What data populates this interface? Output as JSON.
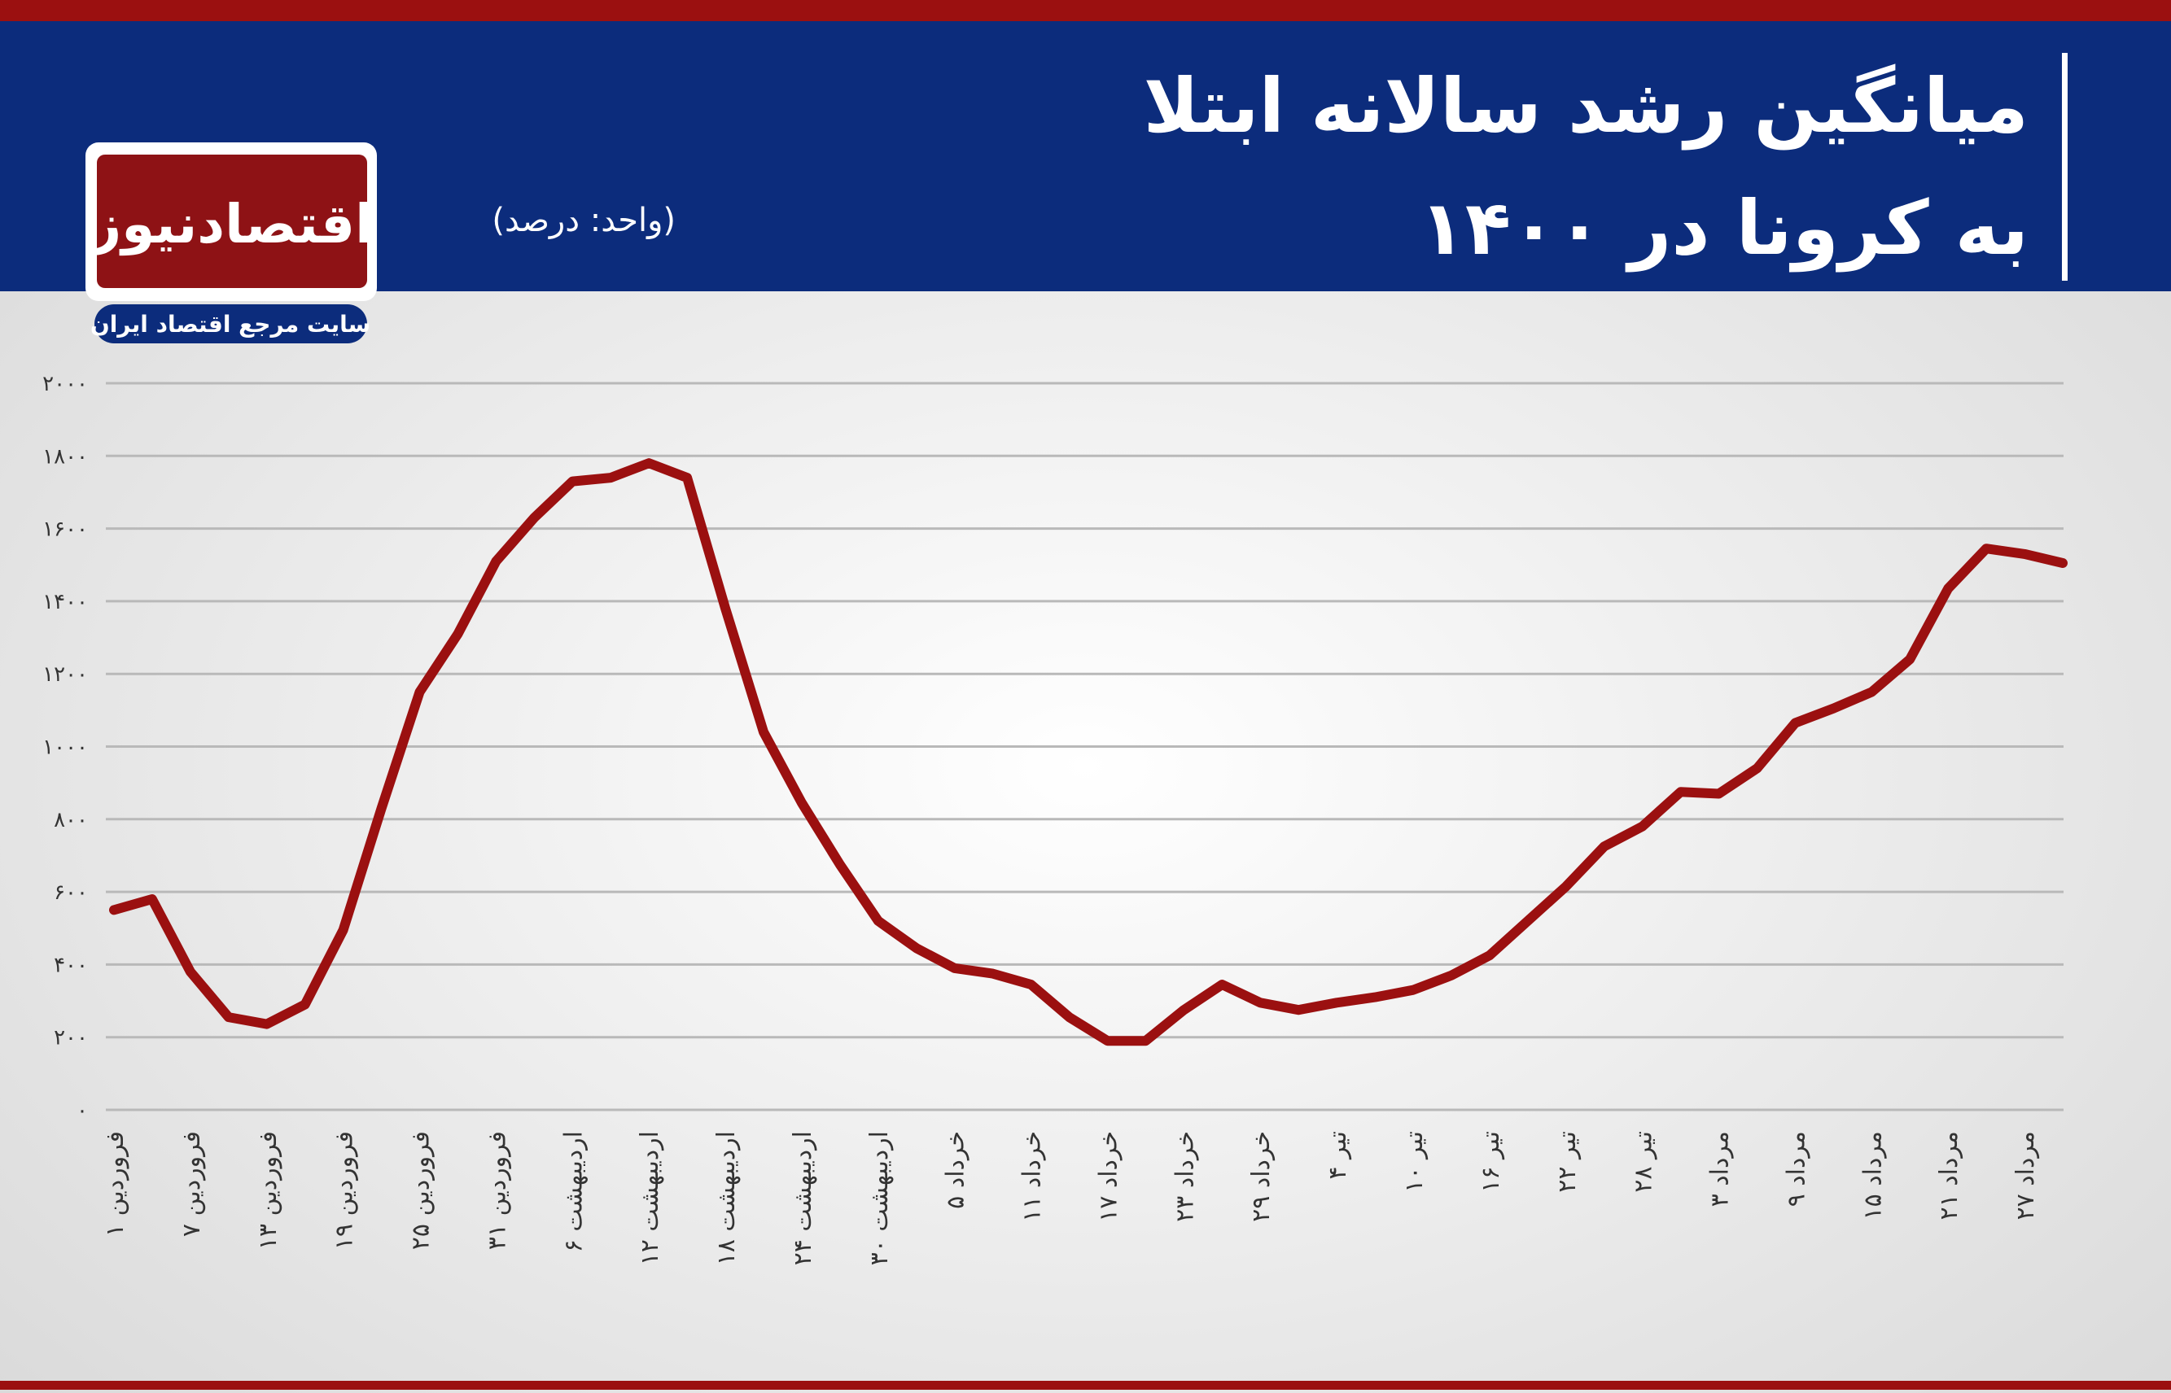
{
  "chart_data": {
    "type": "line",
    "title_lines": [
      "میانگین رشد سالانه ابتلا",
      "به کرونا در ۱۴۰۰"
    ],
    "subtitle": "(واحد: درصد)",
    "logo_text": "اقتصادنیوز",
    "logo_tagline": "سایت مرجع اقتصاد ایران",
    "categories": [
      "۱ فروردین",
      null,
      "۷ فروردین",
      null,
      "۱۳ فروردین",
      null,
      "۱۹ فروردین",
      null,
      "۲۵ فروردین",
      null,
      "۳۱ فروردین",
      null,
      "۶ اردیبهشت",
      null,
      "۱۲ اردیبهشت",
      null,
      "۱۸ اردیبهشت",
      null,
      "۲۴ اردیبهشت",
      null,
      "۳۰ اردیبهشت",
      null,
      "۵ خرداد",
      null,
      "۱۱ خرداد",
      null,
      "۱۷ خرداد",
      null,
      "۲۳ خرداد",
      null,
      "۲۹ خرداد",
      null,
      "۴ تیر",
      null,
      "۱۰ تیر",
      null,
      "۱۶ تیر",
      null,
      "۲۲ تیر",
      null,
      "۲۸ تیر",
      null,
      "۳ مرداد",
      null,
      "۹ مرداد",
      null,
      "۱۵ مرداد",
      null,
      "۲۱ مرداد",
      null,
      "۲۷ مرداد",
      null
    ],
    "values": [
      550,
      580,
      380,
      255,
      236,
      290,
      495,
      830,
      1150,
      1310,
      1510,
      1630,
      1730,
      1740,
      1780,
      1740,
      1380,
      1040,
      845,
      675,
      520,
      445,
      390,
      375,
      345,
      255,
      190,
      190,
      275,
      345,
      295,
      275,
      295,
      310,
      330,
      370,
      425,
      520,
      615,
      725,
      780,
      875,
      870,
      940,
      1065,
      1105,
      1150,
      1240,
      1435,
      1545,
      1530,
      1505
    ],
    "color": "#9b1010",
    "ylim": [
      0,
      2000
    ],
    "yticks": [
      {
        "value": 0,
        "label": "۰"
      },
      {
        "value": 200,
        "label": "۲۰۰"
      },
      {
        "value": 400,
        "label": "۴۰۰"
      },
      {
        "value": 600,
        "label": "۶۰۰"
      },
      {
        "value": 800,
        "label": "۸۰۰"
      },
      {
        "value": 1000,
        "label": "۱۰۰۰"
      },
      {
        "value": 1200,
        "label": "۱۲۰۰"
      },
      {
        "value": 1400,
        "label": "۱۴۰۰"
      },
      {
        "value": 1600,
        "label": "۱۶۰۰"
      },
      {
        "value": 1800,
        "label": "۱۸۰۰"
      },
      {
        "value": 2000,
        "label": "۲۰۰۰"
      }
    ],
    "grid": true
  }
}
